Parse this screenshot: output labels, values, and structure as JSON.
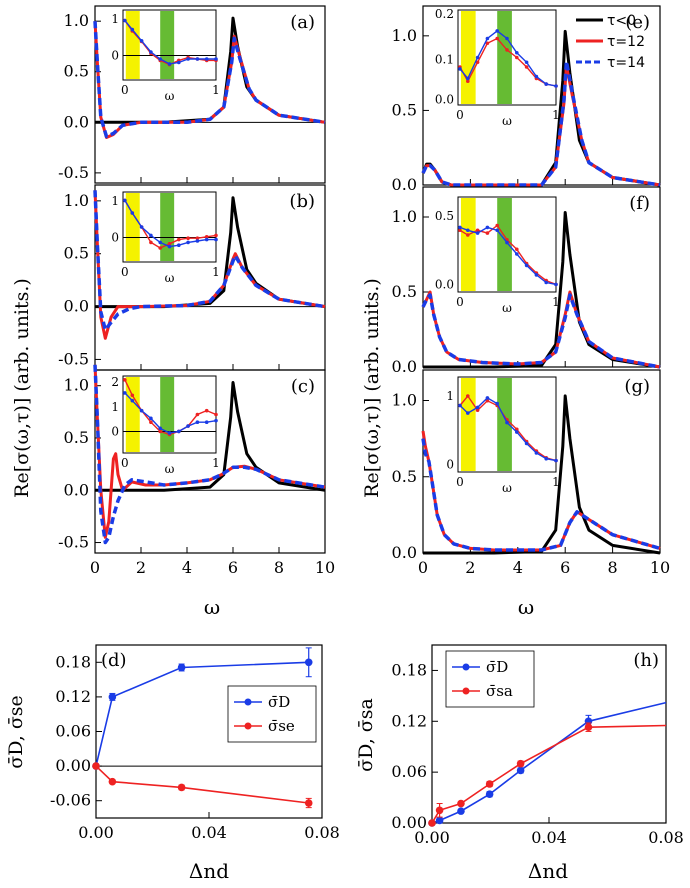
{
  "top_left": {
    "ylabel": "Re[σ(ω,τ)] (arb. units.)",
    "xlabel": "ω",
    "x_ticks": [
      "0",
      "2",
      "4",
      "6",
      "8",
      "10"
    ],
    "panels": [
      {
        "label": "(a)",
        "y_ticks": [
          "-0.5",
          "0.0",
          "0.5",
          "1.0"
        ],
        "inset_y_ticks": [
          "1",
          "0"
        ],
        "inset_x_ticks": [
          "0",
          "1"
        ],
        "inset_xlabel": "ω"
      },
      {
        "label": "(b)",
        "y_ticks": [
          "-0.5",
          "0.0",
          "0.5",
          "1.0"
        ],
        "inset_y_ticks": [
          "1",
          "0"
        ],
        "inset_x_ticks": [
          "0",
          "1"
        ],
        "inset_xlabel": "ω"
      },
      {
        "label": "(c)",
        "y_ticks": [
          "-0.5",
          "0.0",
          "0.5",
          "1.0"
        ],
        "inset_y_ticks": [
          "2",
          "1",
          "0"
        ],
        "inset_x_ticks": [
          "0",
          "1"
        ],
        "inset_xlabel": "ω"
      }
    ]
  },
  "top_right": {
    "ylabel": "Re[σ(ω,τ)] (arb. units.)",
    "xlabel": "ω",
    "x_ticks": [
      "0",
      "2",
      "4",
      "6",
      "8",
      "10"
    ],
    "legend": [
      "τ<0",
      "τ=12",
      "τ=14"
    ],
    "panels": [
      {
        "label": "(e)",
        "y_ticks": [
          "0.0",
          "0.5",
          "1.0"
        ],
        "inset_y_ticks": [
          "0.2",
          "0.1",
          "0.0"
        ],
        "inset_x_ticks": [
          "0",
          "1"
        ],
        "inset_xlabel": "ω"
      },
      {
        "label": "(f)",
        "y_ticks": [
          "0.0",
          "0.5",
          "1.0"
        ],
        "inset_y_ticks": [
          "0.5",
          "0.0"
        ],
        "inset_x_ticks": [
          "0",
          "1"
        ],
        "inset_xlabel": "ω"
      },
      {
        "label": "(g)",
        "y_ticks": [
          "0.0",
          "0.5",
          "1.0"
        ],
        "inset_y_ticks": [
          "1",
          "0"
        ],
        "inset_x_ticks": [
          "0",
          "1"
        ],
        "inset_xlabel": "ω"
      }
    ]
  },
  "bottom_left": {
    "label": "(d)",
    "ylabel": "σ̄D, σ̄se",
    "xlabel": "Δnd",
    "x_ticks": [
      "0.00",
      "0.04",
      "0.08"
    ],
    "y_ticks": [
      "0.18",
      "0.12",
      "0.06",
      "0.00",
      "-0.06"
    ],
    "legend": [
      "σ̄D",
      "σ̄se"
    ]
  },
  "bottom_right": {
    "label": "(h)",
    "ylabel": "σ̄D, σ̄sa",
    "xlabel": "Δnd",
    "x_ticks": [
      "0.00",
      "0.04",
      "0.08"
    ],
    "y_ticks": [
      "0.18",
      "0.12",
      "0.06",
      "0.00"
    ],
    "legend": [
      "σ̄D",
      "σ̄sa"
    ]
  },
  "colors": {
    "black": "#000000",
    "red": "#ee2222",
    "blue": "#1a3ce6",
    "yellow": "#f5f200",
    "green": "#66bb33"
  },
  "chart_data": [
    {
      "type": "line",
      "panel": "(a)",
      "xlim": [
        0,
        10
      ],
      "ylim": [
        -0.6,
        1.15
      ],
      "series": [
        {
          "name": "τ<0",
          "x": [
            0,
            0.3,
            1,
            3,
            5,
            5.6,
            5.9,
            6.0,
            6.2,
            6.6,
            7,
            8,
            10
          ],
          "values": [
            0,
            0,
            0,
            0,
            0.03,
            0.15,
            0.7,
            1.03,
            0.75,
            0.35,
            0.22,
            0.07,
            0.0
          ]
        },
        {
          "name": "τ=12",
          "x": [
            0,
            0.1,
            0.25,
            0.5,
            0.8,
            1.2,
            2,
            4,
            5,
            5.6,
            5.95,
            6.05,
            6.3,
            6.7,
            7,
            8,
            10
          ],
          "values": [
            1.0,
            0.6,
            0.05,
            -0.15,
            -0.12,
            -0.03,
            0,
            0,
            0.03,
            0.15,
            0.6,
            0.85,
            0.65,
            0.33,
            0.22,
            0.07,
            0.0
          ]
        },
        {
          "name": "τ=14",
          "x": [
            0,
            0.1,
            0.25,
            0.5,
            0.8,
            1.2,
            2,
            4,
            5,
            5.6,
            5.95,
            6.05,
            6.3,
            6.7,
            7,
            8,
            10
          ],
          "values": [
            1.0,
            0.6,
            0.05,
            -0.14,
            -0.11,
            -0.03,
            0,
            0,
            0.03,
            0.15,
            0.6,
            0.83,
            0.63,
            0.33,
            0.22,
            0.07,
            0.0
          ]
        }
      ]
    },
    {
      "type": "line",
      "panel": "(b)",
      "xlim": [
        0,
        10
      ],
      "ylim": [
        -0.6,
        1.15
      ],
      "series": [
        {
          "name": "τ<0",
          "x": [
            0,
            0.3,
            1,
            3,
            5,
            5.6,
            5.9,
            6.0,
            6.2,
            6.6,
            7,
            8,
            10
          ],
          "values": [
            0,
            0,
            0,
            0,
            0.03,
            0.15,
            0.7,
            1.03,
            0.75,
            0.35,
            0.22,
            0.07,
            0.0
          ]
        },
        {
          "name": "τ=12",
          "x": [
            0,
            0.1,
            0.25,
            0.45,
            0.7,
            1.0,
            1.5,
            2,
            4,
            5,
            5.6,
            6.0,
            6.1,
            6.4,
            7,
            8,
            10
          ],
          "values": [
            1.1,
            0.6,
            -0.1,
            -0.3,
            -0.1,
            0.0,
            0.0,
            0.0,
            0.01,
            0.05,
            0.2,
            0.45,
            0.5,
            0.37,
            0.2,
            0.07,
            0.0
          ]
        },
        {
          "name": "τ=14",
          "x": [
            0,
            0.1,
            0.25,
            0.45,
            0.7,
            1.0,
            1.5,
            2,
            4,
            5,
            5.6,
            6.0,
            6.1,
            6.4,
            7,
            8,
            10
          ],
          "values": [
            1.1,
            0.6,
            -0.05,
            -0.22,
            -0.15,
            -0.07,
            -0.02,
            0.0,
            0.01,
            0.05,
            0.2,
            0.43,
            0.48,
            0.37,
            0.2,
            0.07,
            0.0
          ]
        }
      ]
    },
    {
      "type": "line",
      "panel": "(c)",
      "xlim": [
        0,
        10
      ],
      "ylim": [
        -0.6,
        1.15
      ],
      "series": [
        {
          "name": "τ<0",
          "x": [
            0,
            0.3,
            1,
            3,
            5,
            5.6,
            5.9,
            6.0,
            6.2,
            6.6,
            7,
            8,
            10
          ],
          "values": [
            0,
            0,
            0,
            0,
            0.03,
            0.15,
            0.7,
            1.03,
            0.75,
            0.35,
            0.22,
            0.07,
            0.0
          ]
        },
        {
          "name": "τ=12",
          "x": [
            0,
            0.1,
            0.25,
            0.45,
            0.6,
            0.8,
            0.9,
            1.0,
            1.2,
            1.6,
            2.2,
            3,
            4,
            5,
            5.5,
            6.0,
            6.5,
            7,
            8,
            10
          ],
          "values": [
            1.2,
            0.7,
            0.0,
            -0.45,
            -0.3,
            0.3,
            0.35,
            0.15,
            0.0,
            0.08,
            0.05,
            0.05,
            0.07,
            0.1,
            0.15,
            0.22,
            0.23,
            0.2,
            0.1,
            0.03
          ]
        },
        {
          "name": "τ=14",
          "x": [
            0,
            0.1,
            0.25,
            0.45,
            0.6,
            0.8,
            1.0,
            1.3,
            1.6,
            2.2,
            3,
            4,
            5,
            5.5,
            6.0,
            6.5,
            7,
            8,
            10
          ],
          "values": [
            1.2,
            0.7,
            -0.2,
            -0.5,
            -0.45,
            -0.25,
            -0.1,
            0.05,
            0.1,
            0.08,
            0.05,
            0.07,
            0.1,
            0.15,
            0.22,
            0.22,
            0.2,
            0.1,
            0.03
          ]
        }
      ]
    },
    {
      "type": "line",
      "panel": "(e)",
      "xlim": [
        0,
        10
      ],
      "ylim": [
        0,
        1.2
      ],
      "series": [
        {
          "name": "τ<0",
          "x": [
            0,
            0.15,
            0.3,
            0.5,
            0.8,
            1.2,
            3,
            5,
            5.6,
            5.9,
            6.0,
            6.2,
            6.6,
            7,
            8,
            10
          ],
          "values": [
            0.08,
            0.14,
            0.14,
            0.1,
            0.02,
            0.0,
            0.0,
            0.0,
            0.15,
            0.7,
            1.03,
            0.75,
            0.3,
            0.15,
            0.05,
            0.0
          ]
        },
        {
          "name": "τ=12",
          "x": [
            0,
            0.15,
            0.3,
            0.5,
            0.8,
            1.2,
            3,
            5,
            5.6,
            5.95,
            6.05,
            6.3,
            6.7,
            7,
            8,
            10
          ],
          "values": [
            0.08,
            0.13,
            0.13,
            0.1,
            0.02,
            0.0,
            0.0,
            0.0,
            0.12,
            0.55,
            0.8,
            0.6,
            0.3,
            0.15,
            0.05,
            0.0
          ]
        },
        {
          "name": "τ=14",
          "x": [
            0,
            0.15,
            0.3,
            0.5,
            0.8,
            1.2,
            3,
            5,
            5.6,
            5.95,
            6.05,
            6.3,
            6.7,
            7,
            8,
            10
          ],
          "values": [
            0.08,
            0.13,
            0.13,
            0.1,
            0.02,
            0.0,
            0.0,
            0.0,
            0.12,
            0.57,
            0.83,
            0.62,
            0.3,
            0.15,
            0.05,
            0.0
          ]
        }
      ]
    },
    {
      "type": "line",
      "panel": "(f)",
      "xlim": [
        0,
        10
      ],
      "ylim": [
        0,
        1.2
      ],
      "series": [
        {
          "name": "τ<0",
          "x": [
            0,
            0.3,
            1,
            3,
            5,
            5.6,
            5.9,
            6.0,
            6.2,
            6.6,
            7,
            8,
            10
          ],
          "values": [
            0,
            0,
            0,
            0,
            0.01,
            0.15,
            0.7,
            1.03,
            0.75,
            0.3,
            0.15,
            0.05,
            0.0
          ]
        },
        {
          "name": "τ=12",
          "x": [
            0,
            0.15,
            0.3,
            0.45,
            0.7,
            1.0,
            1.5,
            2.5,
            4,
            5,
            5.6,
            6.0,
            6.2,
            6.5,
            7,
            8,
            10
          ],
          "values": [
            0.4,
            0.45,
            0.5,
            0.35,
            0.2,
            0.1,
            0.05,
            0.03,
            0.02,
            0.03,
            0.1,
            0.35,
            0.5,
            0.35,
            0.17,
            0.06,
            0.0
          ]
        },
        {
          "name": "τ=14",
          "x": [
            0,
            0.15,
            0.3,
            0.45,
            0.7,
            1.0,
            1.5,
            2.5,
            4,
            5,
            5.6,
            6.0,
            6.2,
            6.5,
            7,
            8,
            10
          ],
          "values": [
            0.4,
            0.45,
            0.48,
            0.35,
            0.2,
            0.1,
            0.05,
            0.03,
            0.02,
            0.03,
            0.1,
            0.33,
            0.48,
            0.35,
            0.17,
            0.06,
            0.0
          ]
        }
      ]
    },
    {
      "type": "line",
      "panel": "(g)",
      "xlim": [
        0,
        10
      ],
      "ylim": [
        0,
        1.2
      ],
      "series": [
        {
          "name": "τ<0",
          "x": [
            0,
            0.3,
            1,
            3,
            5,
            5.6,
            5.9,
            6.0,
            6.2,
            6.6,
            7,
            8,
            10
          ],
          "values": [
            0,
            0,
            0,
            0,
            0.01,
            0.15,
            0.7,
            1.03,
            0.75,
            0.3,
            0.15,
            0.05,
            0.0
          ]
        },
        {
          "name": "τ=12",
          "x": [
            0,
            0.1,
            0.25,
            0.4,
            0.6,
            0.9,
            1.3,
            2,
            3,
            5,
            5.8,
            6.2,
            6.5,
            7,
            8,
            10
          ],
          "values": [
            0.8,
            0.7,
            0.6,
            0.45,
            0.25,
            0.12,
            0.06,
            0.03,
            0.02,
            0.02,
            0.05,
            0.2,
            0.27,
            0.22,
            0.12,
            0.03
          ]
        },
        {
          "name": "τ=14",
          "x": [
            0,
            0.1,
            0.25,
            0.4,
            0.6,
            0.9,
            1.3,
            2,
            3,
            5,
            5.8,
            6.2,
            6.5,
            7,
            8,
            10
          ],
          "values": [
            0.75,
            0.65,
            0.6,
            0.45,
            0.25,
            0.12,
            0.06,
            0.03,
            0.02,
            0.02,
            0.05,
            0.2,
            0.27,
            0.22,
            0.12,
            0.03
          ]
        }
      ]
    },
    {
      "type": "line",
      "panel": "(d)",
      "xlim": [
        0,
        0.08
      ],
      "ylim": [
        -0.09,
        0.21
      ],
      "series": [
        {
          "name": "σ̄D",
          "x": [
            0,
            0.0058,
            0.0303,
            0.0753
          ],
          "values": [
            0,
            0.12,
            0.171,
            0.18
          ],
          "err": [
            0,
            0.006,
            0.006,
            0.025
          ]
        },
        {
          "name": "σ̄se",
          "x": [
            0,
            0.0058,
            0.0303,
            0.0753
          ],
          "values": [
            0,
            -0.027,
            -0.037,
            -0.064
          ],
          "err": [
            0,
            0.003,
            0.004,
            0.008
          ]
        }
      ]
    },
    {
      "type": "line",
      "panel": "(h)",
      "xlim": [
        0,
        0.08
      ],
      "ylim": [
        0,
        0.21
      ],
      "series": [
        {
          "name": "σ̄D",
          "x": [
            0,
            0.0026,
            0.0099,
            0.0197,
            0.0303,
            0.0535,
            0.08
          ],
          "values": [
            0,
            0.003,
            0.014,
            0.034,
            0.062,
            0.12,
            0.142
          ],
          "err": [
            0,
            0.003,
            0.002,
            0.003,
            0.003,
            0.007,
            0
          ]
        },
        {
          "name": "σ̄sa",
          "x": [
            0,
            0.0026,
            0.0099,
            0.0197,
            0.0303,
            0.0535,
            0.08
          ],
          "values": [
            0,
            0.015,
            0.023,
            0.046,
            0.07,
            0.113,
            0.115
          ],
          "err": [
            0,
            0.008,
            0.002,
            0.003,
            0.003,
            0.005,
            0
          ]
        }
      ]
    }
  ]
}
